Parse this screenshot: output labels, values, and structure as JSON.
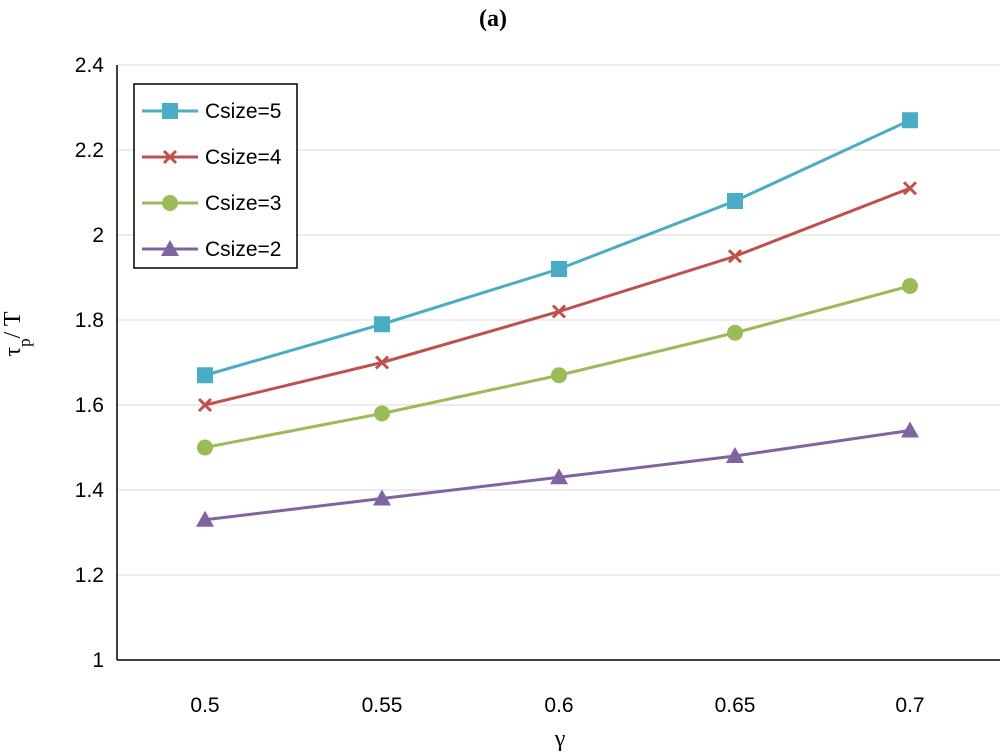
{
  "chart_data": {
    "type": "line",
    "title": "(a)",
    "xlabel": "γ",
    "ylabel_main": "τ",
    "ylabel_sub": "p",
    "ylabel_tail": "/ T",
    "x": [
      0.5,
      0.55,
      0.6,
      0.65,
      0.7
    ],
    "x_tick_labels": [
      "0.5",
      "0.55",
      "0.6",
      "0.65",
      "0.7"
    ],
    "y_ticks": [
      1,
      1.2,
      1.4,
      1.6,
      1.8,
      2,
      2.2,
      2.4
    ],
    "y_tick_labels": [
      "1",
      "1.2",
      "1.4",
      "1.6",
      "1.8",
      "2",
      "2.2",
      "2.4"
    ],
    "ylim": [
      1,
      2.4
    ],
    "grid": true,
    "legend_position": "top-left",
    "series": [
      {
        "name": "Csize=5",
        "marker": "square",
        "color": "#4BACC6",
        "values": [
          1.67,
          1.79,
          1.92,
          2.08,
          2.27
        ]
      },
      {
        "name": "Csize=4",
        "marker": "x",
        "color": "#C0504D",
        "values": [
          1.6,
          1.7,
          1.82,
          1.95,
          2.11
        ]
      },
      {
        "name": "Csize=3",
        "marker": "circle",
        "color": "#9BBB59",
        "values": [
          1.5,
          1.58,
          1.67,
          1.77,
          1.88
        ]
      },
      {
        "name": "Csize=2",
        "marker": "triangle",
        "color": "#8064A2",
        "values": [
          1.33,
          1.38,
          1.43,
          1.48,
          1.54
        ]
      }
    ]
  }
}
